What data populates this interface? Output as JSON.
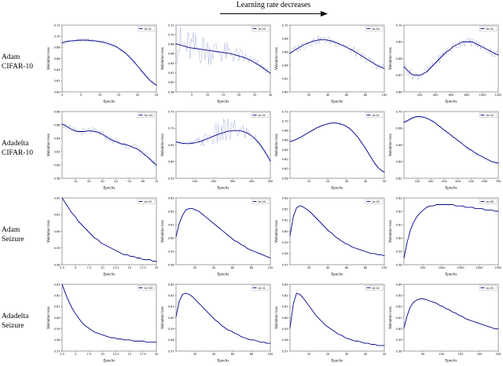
{
  "header": {
    "title": "Learning rate decreases"
  },
  "row_labels": [
    {
      "line1": "Adam",
      "line2": "CIFAR-10"
    },
    {
      "line1": "Adadelta",
      "line2": "CIFAR-10"
    },
    {
      "line1": "Adam",
      "line2": "Seizure"
    },
    {
      "line1": "Adadelta",
      "line2": "Seizure"
    }
  ],
  "axis_labels": {
    "x": "Epochs",
    "y": "Validation loss"
  },
  "colors": {
    "smooth": "#00008b",
    "raw": "#aab3e0",
    "axis": "#444444"
  },
  "chart_data": [
    {
      "type": "line",
      "row": 0,
      "col": 0,
      "legend": "1e-02",
      "xlim": [
        0,
        25
      ],
      "xticks": [
        0,
        5,
        10,
        15,
        20,
        25
      ],
      "ylim": [
        0.6,
        0.72
      ],
      "yticks": [
        0.6,
        0.62,
        0.64,
        0.66,
        0.68,
        0.7,
        0.72
      ],
      "values": [
        0.688,
        0.69,
        0.691,
        0.692,
        0.692,
        0.693,
        0.693,
        0.693,
        0.693,
        0.692,
        0.692,
        0.691,
        0.69,
        0.689,
        0.687,
        0.685,
        0.683,
        0.68,
        0.676,
        0.672,
        0.667,
        0.661,
        0.655,
        0.648,
        0.641,
        0.634,
        0.627,
        0.621,
        0.616,
        0.612
      ],
      "noise": 0.004
    },
    {
      "type": "line",
      "row": 0,
      "col": 1,
      "legend": "1e-03",
      "xlim": [
        0,
        30
      ],
      "xticks": [
        5,
        10,
        15,
        20,
        25,
        30
      ],
      "ylim": [
        0.58,
        0.72
      ],
      "yticks": [
        0.58,
        0.6,
        0.62,
        0.64,
        0.66,
        0.68,
        0.7,
        0.72
      ],
      "values": [
        0.681,
        0.679,
        0.677,
        0.675,
        0.673,
        0.672,
        0.671,
        0.67,
        0.669,
        0.668,
        0.667,
        0.666,
        0.665,
        0.664,
        0.663,
        0.662,
        0.661,
        0.66,
        0.658,
        0.656,
        0.654,
        0.652,
        0.649,
        0.646,
        0.642,
        0.638,
        0.634,
        0.629,
        0.624,
        0.619
      ],
      "noise": [
        0.045,
        0.004
      ]
    },
    {
      "type": "line",
      "row": 0,
      "col": 2,
      "legend": "1e-04",
      "xlim": [
        0,
        100
      ],
      "xticks": [
        20,
        40,
        60,
        80,
        100
      ],
      "ylim": [
        0.6,
        0.7
      ],
      "yticks": [
        0.6,
        0.62,
        0.64,
        0.66,
        0.68,
        0.7
      ],
      "values": [
        0.658,
        0.661,
        0.664,
        0.667,
        0.67,
        0.672,
        0.674,
        0.676,
        0.677,
        0.678,
        0.678,
        0.678,
        0.677,
        0.676,
        0.674,
        0.672,
        0.67,
        0.668,
        0.665,
        0.663,
        0.66,
        0.657,
        0.654,
        0.651,
        0.648,
        0.645,
        0.642,
        0.639,
        0.637,
        0.635
      ],
      "noise": 0.007
    },
    {
      "type": "line",
      "row": 0,
      "col": 3,
      "legend": "1e-05",
      "xlim": [
        0,
        1200
      ],
      "xticks": [
        200,
        400,
        600,
        800,
        1000,
        1200
      ],
      "ylim": [
        0.66,
        0.7
      ],
      "yticks": [
        0.66,
        0.67,
        0.68,
        0.69,
        0.7
      ],
      "values": [
        0.675,
        0.673,
        0.671,
        0.67,
        0.67,
        0.67,
        0.671,
        0.672,
        0.674,
        0.676,
        0.678,
        0.68,
        0.682,
        0.684,
        0.685,
        0.687,
        0.688,
        0.689,
        0.69,
        0.69,
        0.69,
        0.69,
        0.689,
        0.688,
        0.687,
        0.686,
        0.685,
        0.684,
        0.683,
        0.682
      ],
      "noise": 0.003
    },
    {
      "type": "line",
      "row": 1,
      "col": 0,
      "legend": "1e+00",
      "xlim": [
        0,
        70
      ],
      "xticks": [
        10,
        20,
        30,
        40,
        50,
        60,
        70
      ],
      "ylim": [
        0.58,
        0.68
      ],
      "yticks": [
        0.58,
        0.6,
        0.62,
        0.64,
        0.66,
        0.68
      ],
      "values": [
        0.661,
        0.659,
        0.656,
        0.653,
        0.651,
        0.65,
        0.65,
        0.65,
        0.651,
        0.651,
        0.65,
        0.649,
        0.647,
        0.644,
        0.641,
        0.638,
        0.636,
        0.634,
        0.632,
        0.631,
        0.63,
        0.628,
        0.626,
        0.624,
        0.621,
        0.617,
        0.613,
        0.609,
        0.604,
        0.6
      ],
      "noise": 0.006
    },
    {
      "type": "line",
      "row": 1,
      "col": 1,
      "legend": "1e-01",
      "xlim": [
        0,
        500
      ],
      "xticks": [
        100,
        200,
        300,
        400,
        500
      ],
      "ylim": [
        0.55,
        0.75
      ],
      "yticks": [
        0.55,
        0.6,
        0.65,
        0.7,
        0.75
      ],
      "values": [
        0.659,
        0.657,
        0.655,
        0.654,
        0.654,
        0.655,
        0.657,
        0.659,
        0.662,
        0.666,
        0.67,
        0.674,
        0.678,
        0.682,
        0.685,
        0.688,
        0.691,
        0.692,
        0.693,
        0.693,
        0.692,
        0.689,
        0.685,
        0.679,
        0.671,
        0.661,
        0.649,
        0.635,
        0.619,
        0.601
      ],
      "noise": [
        0.005,
        0.005,
        0.006,
        0.007,
        0.009,
        0.011,
        0.014,
        0.017,
        0.02,
        0.024,
        0.028,
        0.032,
        0.036,
        0.04,
        0.043,
        0.044,
        0.043,
        0.04,
        0.036,
        0.032,
        0.028,
        0.024,
        0.02,
        0.017,
        0.014,
        0.012,
        0.01,
        0.008,
        0.007,
        0.006
      ]
    },
    {
      "type": "line",
      "row": 1,
      "col": 2,
      "legend": "1e-02",
      "xlim": [
        0,
        50
      ],
      "xticks": [
        10,
        20,
        30,
        40,
        50
      ],
      "ylim": [
        0.58,
        0.72
      ],
      "yticks": [
        0.58,
        0.6,
        0.62,
        0.64,
        0.66,
        0.68,
        0.7,
        0.72
      ],
      "values": [
        0.657,
        0.659,
        0.662,
        0.665,
        0.669,
        0.673,
        0.677,
        0.681,
        0.685,
        0.688,
        0.691,
        0.693,
        0.695,
        0.696,
        0.696,
        0.695,
        0.693,
        0.69,
        0.686,
        0.68,
        0.673,
        0.665,
        0.655,
        0.645,
        0.634,
        0.623,
        0.612,
        0.603,
        0.597,
        0.593
      ],
      "noise": 0.002
    },
    {
      "type": "line",
      "row": 1,
      "col": 3,
      "legend": "1e-03",
      "xlim": [
        0,
        700
      ],
      "xticks": [
        100,
        200,
        300,
        400,
        500,
        600,
        700
      ],
      "ylim": [
        0.62,
        0.7
      ],
      "yticks": [
        0.62,
        0.64,
        0.66,
        0.68,
        0.7
      ],
      "values": [
        0.687,
        0.689,
        0.691,
        0.693,
        0.694,
        0.694,
        0.693,
        0.692,
        0.69,
        0.688,
        0.685,
        0.682,
        0.679,
        0.676,
        0.673,
        0.67,
        0.667,
        0.664,
        0.661,
        0.658,
        0.655,
        0.653,
        0.65,
        0.648,
        0.646,
        0.644,
        0.642,
        0.64,
        0.639,
        0.638
      ],
      "noise": 0.002
    },
    {
      "type": "line",
      "row": 2,
      "col": 0,
      "legend": "1e-03",
      "xlim": [
        2.5,
        20
      ],
      "xticks": [
        2.5,
        5.0,
        7.5,
        10.0,
        12.5,
        15.0,
        17.5,
        20.0
      ],
      "ylim": [
        0.58,
        0.62
      ],
      "yticks": [
        0.58,
        0.59,
        0.6,
        0.61,
        0.62
      ],
      "values": [
        0.62,
        0.617,
        0.614,
        0.611,
        0.609,
        0.606,
        0.604,
        0.602,
        0.6,
        0.598,
        0.596,
        0.595,
        0.593,
        0.592,
        0.591,
        0.59,
        0.589,
        0.588,
        0.587,
        0.586,
        0.586,
        0.585,
        0.585,
        0.584,
        0.584,
        0.583,
        0.583,
        0.583,
        0.582,
        0.582
      ],
      "noise": 0
    },
    {
      "type": "line",
      "row": 2,
      "col": 1,
      "legend": "1e-04",
      "xlim": [
        0,
        100
      ],
      "xticks": [
        20,
        40,
        60,
        80,
        100
      ],
      "ylim": [
        0.58,
        0.63
      ],
      "yticks": [
        0.58,
        0.59,
        0.6,
        0.61,
        0.62,
        0.63
      ],
      "values": [
        0.601,
        0.611,
        0.617,
        0.621,
        0.622,
        0.622,
        0.621,
        0.62,
        0.618,
        0.616,
        0.614,
        0.612,
        0.61,
        0.608,
        0.606,
        0.604,
        0.602,
        0.6,
        0.598,
        0.597,
        0.595,
        0.594,
        0.592,
        0.591,
        0.59,
        0.589,
        0.588,
        0.587,
        0.586,
        0.585
      ],
      "noise": 0
    },
    {
      "type": "line",
      "row": 2,
      "col": 2,
      "legend": "1e-05",
      "xlim": [
        0,
        100
      ],
      "xticks": [
        20,
        40,
        60,
        80,
        100
      ],
      "ylim": [
        0.57,
        0.63
      ],
      "yticks": [
        0.57,
        0.58,
        0.59,
        0.6,
        0.61,
        0.62,
        0.63
      ],
      "values": [
        0.596,
        0.613,
        0.621,
        0.623,
        0.622,
        0.62,
        0.618,
        0.615,
        0.612,
        0.609,
        0.606,
        0.603,
        0.6,
        0.598,
        0.595,
        0.593,
        0.591,
        0.589,
        0.588,
        0.586,
        0.585,
        0.584,
        0.583,
        0.582,
        0.581,
        0.58,
        0.58,
        0.579,
        0.579,
        0.578
      ],
      "noise": 0
    },
    {
      "type": "line",
      "row": 2,
      "col": 3,
      "legend": "1e-06",
      "xlim": [
        0,
        2500
      ],
      "xticks": [
        500,
        1000,
        1500,
        2000,
        2500
      ],
      "ylim": [
        0.58,
        0.63
      ],
      "yticks": [
        0.58,
        0.59,
        0.6,
        0.61,
        0.62,
        0.63
      ],
      "values": [
        0.585,
        0.597,
        0.606,
        0.612,
        0.616,
        0.619,
        0.621,
        0.623,
        0.624,
        0.624,
        0.625,
        0.625,
        0.625,
        0.625,
        0.625,
        0.625,
        0.624,
        0.624,
        0.624,
        0.623,
        0.623,
        0.623,
        0.622,
        0.622,
        0.622,
        0.621,
        0.621,
        0.621,
        0.62,
        0.62
      ],
      "noise": 0
    },
    {
      "type": "line",
      "row": 3,
      "col": 0,
      "legend": "1e+00",
      "xlim": [
        2.5,
        20
      ],
      "xticks": [
        2.5,
        5.0,
        7.5,
        10.0,
        12.5,
        15.0,
        17.5,
        20.0
      ],
      "ylim": [
        0.57,
        0.63
      ],
      "yticks": [
        0.57,
        0.58,
        0.59,
        0.6,
        0.61,
        0.62,
        0.63
      ],
      "values": [
        0.63,
        0.622,
        0.615,
        0.609,
        0.604,
        0.6,
        0.596,
        0.593,
        0.591,
        0.589,
        0.587,
        0.586,
        0.585,
        0.584,
        0.583,
        0.582,
        0.582,
        0.581,
        0.581,
        0.58,
        0.58,
        0.58,
        0.579,
        0.579,
        0.579,
        0.579,
        0.578,
        0.578,
        0.578,
        0.578
      ],
      "noise": 0
    },
    {
      "type": "line",
      "row": 3,
      "col": 1,
      "legend": "1e-01",
      "xlim": [
        0,
        100
      ],
      "xticks": [
        20,
        40,
        60,
        80,
        100
      ],
      "ylim": [
        0.57,
        0.63
      ],
      "yticks": [
        0.57,
        0.58,
        0.59,
        0.6,
        0.61,
        0.62,
        0.63
      ],
      "values": [
        0.601,
        0.615,
        0.621,
        0.622,
        0.621,
        0.619,
        0.616,
        0.613,
        0.61,
        0.607,
        0.604,
        0.601,
        0.598,
        0.596,
        0.593,
        0.591,
        0.589,
        0.588,
        0.586,
        0.585,
        0.583,
        0.582,
        0.581,
        0.58,
        0.58,
        0.579,
        0.578,
        0.578,
        0.577,
        0.577
      ],
      "noise": 0
    },
    {
      "type": "line",
      "row": 3,
      "col": 2,
      "legend": "1e-02",
      "xlim": [
        0,
        50
      ],
      "xticks": [
        10,
        20,
        30,
        40,
        50
      ],
      "ylim": [
        0.57,
        0.63
      ],
      "yticks": [
        0.57,
        0.58,
        0.59,
        0.6,
        0.61,
        0.62,
        0.63
      ],
      "values": [
        0.591,
        0.612,
        0.622,
        0.621,
        0.618,
        0.614,
        0.61,
        0.606,
        0.602,
        0.599,
        0.596,
        0.593,
        0.591,
        0.589,
        0.587,
        0.585,
        0.584,
        0.582,
        0.581,
        0.58,
        0.579,
        0.579,
        0.578,
        0.577,
        0.577,
        0.576,
        0.576,
        0.575,
        0.575,
        0.575
      ],
      "noise": 0
    },
    {
      "type": "line",
      "row": 3,
      "col": 3,
      "legend": "1e-03",
      "xlim": [
        0,
        250
      ],
      "xticks": [
        50,
        100,
        150,
        200,
        250
      ],
      "ylim": [
        0.58,
        0.64
      ],
      "yticks": [
        0.58,
        0.59,
        0.6,
        0.61,
        0.62,
        0.63,
        0.64
      ],
      "values": [
        0.601,
        0.612,
        0.62,
        0.624,
        0.626,
        0.627,
        0.627,
        0.626,
        0.625,
        0.624,
        0.623,
        0.621,
        0.62,
        0.618,
        0.617,
        0.615,
        0.614,
        0.612,
        0.611,
        0.609,
        0.608,
        0.607,
        0.606,
        0.605,
        0.604,
        0.603,
        0.602,
        0.601,
        0.6,
        0.6
      ],
      "noise": 0
    }
  ]
}
